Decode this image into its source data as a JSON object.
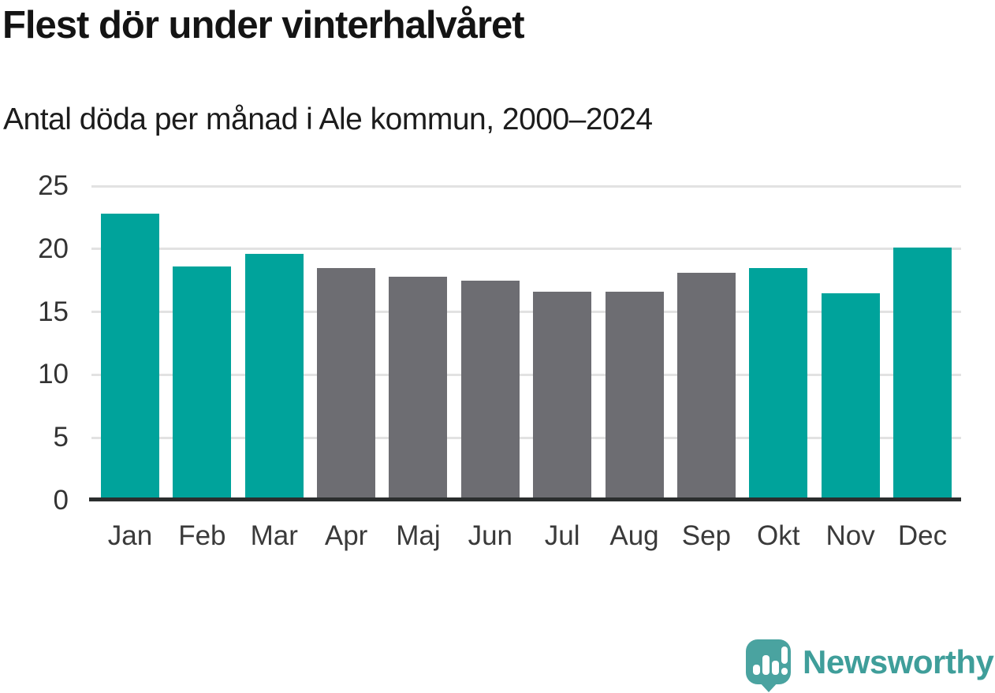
{
  "header": {
    "title": "Flest dör under vinterhalvåret",
    "subtitle": "Antal döda per månad i Ale kommun, 2000–2024"
  },
  "chart_data": {
    "type": "bar",
    "title": "Flest dör under vinterhalvåret",
    "subtitle": "Antal döda per månad i Ale kommun, 2000–2024",
    "categories": [
      "Jan",
      "Feb",
      "Mar",
      "Apr",
      "Maj",
      "Jun",
      "Jul",
      "Aug",
      "Sep",
      "Okt",
      "Nov",
      "Dec"
    ],
    "values": [
      22.8,
      18.6,
      19.6,
      18.5,
      17.8,
      17.5,
      16.6,
      16.6,
      18.1,
      18.5,
      16.5,
      20.1
    ],
    "bar_roles": [
      "winter",
      "winter",
      "winter",
      "summer",
      "summer",
      "summer",
      "summer",
      "summer",
      "summer",
      "winter",
      "winter",
      "winter"
    ],
    "xlabel": "",
    "ylabel": "",
    "ylim": [
      0,
      25
    ],
    "yticks": [
      0,
      5,
      10,
      15,
      20,
      25
    ],
    "grid": true,
    "legend": false
  },
  "palette": {
    "winter": "#00a39b",
    "summer": "#6d6d72",
    "gridline": "#e2e2e2",
    "axis": "#2b2e2e",
    "tick_text": "#333333",
    "title_text": "#141414"
  },
  "branding": {
    "logo_icon": "newsworthy-speech-bubble-barchart-icon",
    "logo_text": "Newsworthy",
    "logo_bubble_color": "#4aa3a0",
    "logo_text_color": "#3f9e9a"
  }
}
